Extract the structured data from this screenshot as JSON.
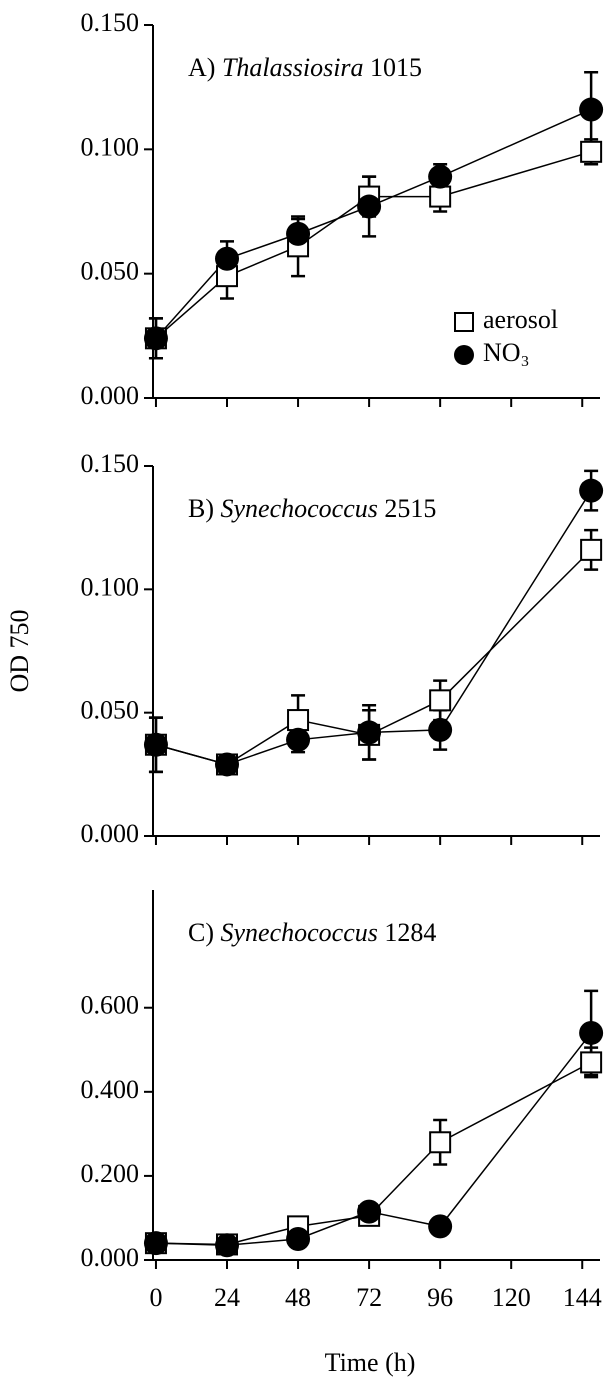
{
  "chart_data": [
    {
      "type": "line",
      "title": [
        "A)",
        "Thalassiosira",
        "1015"
      ],
      "x": [
        0,
        24,
        48,
        72,
        96,
        147
      ],
      "series": [
        {
          "name": "aerosol",
          "color": "#000000",
          "marker": "square",
          "values": [
            0.024,
            0.049,
            0.061,
            0.081,
            0.081,
            0.099
          ],
          "errors": [
            0.008,
            0.009,
            0.012,
            0.008,
            0.006,
            0.005
          ]
        },
        {
          "name": "NO₃",
          "color": "#000000",
          "marker": "circle",
          "values": [
            0.024,
            0.056,
            0.066,
            0.077,
            0.089,
            0.116
          ],
          "errors": [
            0.008,
            0.007,
            0.006,
            0.012,
            0.005,
            0.015
          ]
        }
      ],
      "xlim": [
        -1,
        150
      ],
      "xticks": [
        0,
        24,
        48,
        72,
        96,
        120,
        144
      ],
      "ylim": [
        0,
        0.15
      ],
      "yticks": [
        {
          "value": 0,
          "label": "0.000"
        },
        {
          "value": 0.05,
          "label": "0.050"
        },
        {
          "value": 0.1,
          "label": "0.100"
        },
        {
          "value": 0.15,
          "label": "0.150"
        }
      ],
      "legend": "lower right"
    },
    {
      "type": "line",
      "title": [
        "B)",
        "Synechococcus",
        "2515"
      ],
      "ylabel": "OD 750",
      "x": [
        0,
        24,
        48,
        72,
        96,
        147
      ],
      "series": [
        {
          "name": "aerosol",
          "color": "#000000",
          "marker": "square",
          "values": [
            0.037,
            0.029,
            0.047,
            0.041,
            0.055,
            0.116
          ],
          "errors": [
            0.011,
            0.003,
            0.01,
            0.01,
            0.008,
            0.008
          ]
        },
        {
          "name": "NO₃",
          "color": "#000000",
          "marker": "circle",
          "values": [
            0.037,
            0.029,
            0.039,
            0.042,
            0.043,
            0.14
          ],
          "errors": [
            0.011,
            0.003,
            0.005,
            0.011,
            0.008,
            0.008
          ]
        }
      ],
      "xlim": [
        -1,
        150
      ],
      "xticks": [
        0,
        24,
        48,
        72,
        96,
        120,
        144
      ],
      "ylim": [
        0,
        0.15
      ],
      "yticks": [
        {
          "value": 0,
          "label": "0.000"
        },
        {
          "value": 0.05,
          "label": "0.050"
        },
        {
          "value": 0.1,
          "label": "0.100"
        },
        {
          "value": 0.15,
          "label": "0.150"
        }
      ]
    },
    {
      "type": "line",
      "title": [
        "C)",
        "Synechococcus",
        "1284"
      ],
      "xlabel": "Time (h)",
      "x": [
        0,
        24,
        48,
        72,
        96,
        147
      ],
      "series": [
        {
          "name": "aerosol",
          "color": "#000000",
          "marker": "square",
          "values": [
            0.04,
            0.037,
            0.08,
            0.105,
            0.28,
            0.47
          ],
          "errors": [
            0.01,
            0.01,
            0.01,
            0.02,
            0.053,
            0.035
          ]
        },
        {
          "name": "NO₃",
          "color": "#000000",
          "marker": "circle",
          "values": [
            0.04,
            0.035,
            0.05,
            0.115,
            0.08,
            0.54
          ],
          "errors": [
            0.01,
            0.01,
            0.01,
            0.02,
            0.01,
            0.1
          ]
        }
      ],
      "xlim": [
        -1,
        150
      ],
      "xticks": [
        0,
        24,
        48,
        72,
        96,
        120,
        144
      ],
      "ylim": [
        0,
        0.88
      ],
      "yticks": [
        {
          "value": 0,
          "label": "0.000"
        },
        {
          "value": 0.2,
          "label": "0.200"
        },
        {
          "value": 0.4,
          "label": "0.400"
        },
        {
          "value": 0.6,
          "label": "0.600"
        }
      ]
    }
  ]
}
